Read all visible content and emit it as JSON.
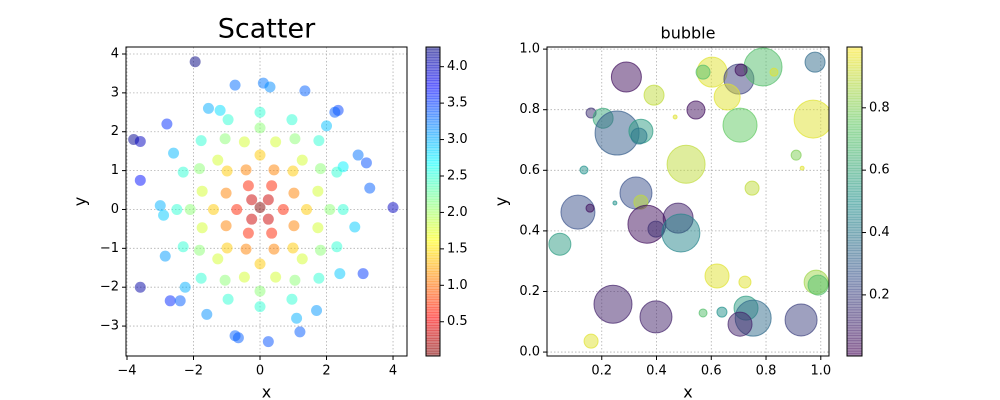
{
  "chart_data": [
    {
      "type": "scatter",
      "title": "Scatter",
      "xlabel": "x",
      "ylabel": "y",
      "colormap": "jet_r",
      "alpha": 0.5,
      "grid": true,
      "xlim": [
        -4.03,
        4.42
      ],
      "ylim": [
        -3.77,
        4.18
      ],
      "xticks": [
        {
          "value": -4,
          "label": "−4"
        },
        {
          "value": -2,
          "label": "−2"
        },
        0,
        2,
        4
      ],
      "yticks": [
        {
          "value": -3,
          "label": "−3"
        },
        {
          "value": -2,
          "label": "−2"
        },
        {
          "value": -1,
          "label": "−1"
        },
        0,
        1,
        2,
        3,
        4
      ],
      "colorbar": {
        "lim": [
          0.03,
          4.27
        ],
        "ticks": [
          0.5,
          {
            "value": 1,
            "label": "1.0"
          },
          1.5,
          {
            "value": 2,
            "label": "2.0"
          },
          2.5,
          {
            "value": 3,
            "label": "3.0"
          },
          3.5,
          {
            "value": 4,
            "label": "4.0"
          }
        ]
      },
      "x": [
        -1.95,
        -3.8,
        -3.6,
        4.0,
        -3.6,
        -3.6,
        3.2,
        3.1,
        -2.8,
        -2.7,
        -0.75,
        -0.65,
        1.2,
        0.1,
        0.3,
        1.35,
        -0.75,
        2.35,
        2.25,
        3.3,
        -3.0,
        -2.9,
        2.4,
        -2.4,
        1.1,
        -1.2,
        -1.55,
        2.0,
        2.95,
        2.85,
        -2.85,
        -2.25,
        0.25,
        1.7,
        -1.6,
        2.5,
        -2.6,
        2.5,
        1.77,
        0,
        -1.77,
        -2.5,
        -1.77,
        0,
        1.77,
        2.31,
        0.96,
        -0.96,
        -2.31,
        -2.31,
        -0.96,
        0.96,
        2.31,
        2.1,
        1.82,
        1.05,
        0,
        -1.05,
        -1.82,
        -2.1,
        -1.82,
        -1.05,
        0,
        1.05,
        1.82,
        1.74,
        1.27,
        0.47,
        -0.47,
        -1.27,
        -1.74,
        -1.74,
        -1.27,
        -0.47,
        0.47,
        1.27,
        1.74,
        1.4,
        0.99,
        0,
        -0.99,
        -1.4,
        -0.99,
        0,
        0.99,
        1.02,
        0.42,
        -0.42,
        -1.02,
        -1.02,
        -0.42,
        0.42,
        1.02,
        0.7,
        0.35,
        -0.35,
        -0.7,
        -0.35,
        0.35,
        0.25,
        -0.25,
        -0.25,
        0.25,
        0
      ],
      "y": [
        3.8,
        1.8,
        1.75,
        0.05,
        -2.0,
        0.75,
        1.2,
        -1.65,
        2.2,
        -2.35,
        -3.25,
        -3.3,
        -3.15,
        3.25,
        3.15,
        3.05,
        3.2,
        2.55,
        2.5,
        0.55,
        0.1,
        -0.15,
        -1.65,
        -2.35,
        -2.8,
        2.55,
        2.6,
        2.15,
        1.4,
        -0.45,
        -1.2,
        -2.0,
        -3.4,
        -2.6,
        -2.7,
        1.1,
        1.45,
        0,
        1.77,
        2.5,
        1.77,
        0,
        -1.77,
        -2.5,
        -1.77,
        0.96,
        2.31,
        2.31,
        0.96,
        -0.96,
        -2.31,
        -2.31,
        -0.96,
        0,
        1.05,
        1.82,
        2.1,
        1.82,
        1.05,
        0,
        -1.05,
        -1.82,
        -2.1,
        -1.82,
        -1.05,
        0.47,
        1.27,
        1.74,
        1.74,
        1.27,
        0.47,
        -0.47,
        -1.27,
        -1.74,
        -1.74,
        -1.27,
        -0.47,
        0,
        0.99,
        1.4,
        0.99,
        0,
        -0.99,
        -1.4,
        -0.99,
        0.42,
        1.02,
        1.02,
        0.42,
        -0.42,
        -1.02,
        -1.02,
        -0.42,
        0,
        0.61,
        0.61,
        0,
        -0.61,
        -0.61,
        0.25,
        0.25,
        -0.25,
        -0.25,
        0.05
      ],
      "c": [
        4.27,
        4.2,
        4.0,
        4.0,
        4.12,
        3.68,
        3.42,
        3.51,
        3.56,
        3.58,
        3.34,
        3.36,
        3.37,
        3.25,
        3.16,
        3.34,
        3.29,
        3.47,
        3.36,
        3.35,
        3.0,
        2.9,
        2.91,
        3.36,
        3.01,
        2.82,
        3.03,
        2.94,
        3.27,
        2.89,
        3.09,
        3.01,
        3.41,
        3.11,
        3.14,
        2.73,
        2.98,
        2.5,
        2.5,
        2.5,
        2.5,
        2.5,
        2.5,
        2.5,
        2.5,
        2.5,
        2.5,
        2.5,
        2.5,
        2.5,
        2.5,
        2.5,
        2.5,
        2.1,
        2.1,
        2.1,
        2.1,
        2.1,
        2.1,
        2.1,
        2.1,
        2.1,
        2.1,
        2.1,
        2.1,
        1.8,
        1.8,
        1.8,
        1.8,
        1.8,
        1.8,
        1.8,
        1.8,
        1.8,
        1.8,
        1.8,
        1.8,
        1.4,
        1.4,
        1.4,
        1.4,
        1.4,
        1.4,
        1.4,
        1.4,
        1.1,
        1.1,
        1.1,
        1.1,
        1.1,
        1.1,
        1.1,
        1.1,
        0.7,
        0.7,
        0.7,
        0.7,
        0.7,
        0.7,
        0.35,
        0.35,
        0.35,
        0.35,
        0.05
      ]
    },
    {
      "type": "bubble",
      "title": "bubble",
      "xlabel": "x",
      "ylabel": "y",
      "colormap": "viridis",
      "alpha": 0.5,
      "grid": true,
      "xlim": [
        0,
        1.03
      ],
      "ylim": [
        -0.013,
        1.007
      ],
      "xticks": [
        0.2,
        0.4,
        0.6,
        0.8,
        {
          "value": 1,
          "label": "1.0"
        }
      ],
      "yticks": [
        {
          "value": 0,
          "label": "0.0"
        },
        0.2,
        0.4,
        0.6,
        0.8,
        {
          "value": 1,
          "label": "1.0"
        }
      ],
      "colorbar": {
        "lim": [
          0.004,
          0.995
        ],
        "ticks": [
          0.2,
          0.4,
          0.6,
          0.8
        ]
      },
      "x": [
        0.29,
        0.603,
        0.701,
        0.789,
        0.709,
        0.979,
        0.57,
        0.829,
        0.391,
        0.658,
        0.544,
        0.468,
        0.161,
        0.205,
        0.256,
        0.343,
        0.336,
        0.705,
        0.972,
        0.91,
        0.932,
        0.508,
        0.135,
        0.749,
        0.325,
        0.343,
        0.248,
        0.113,
        0.157,
        0.479,
        0.365,
        0.398,
        0.489,
        0.047,
        0.621,
        0.723,
        0.983,
        0.99,
        0.241,
        0.398,
        0.727,
        0.753,
        0.639,
        0.57,
        0.705,
        0.928,
        0.161
      ],
      "y": [
        0.908,
        0.924,
        0.901,
        0.941,
        0.931,
        0.957,
        0.924,
        0.924,
        0.848,
        0.842,
        0.799,
        0.776,
        0.789,
        0.772,
        0.723,
        0.729,
        0.713,
        0.749,
        0.769,
        0.65,
        0.607,
        0.62,
        0.601,
        0.541,
        0.525,
        0.495,
        0.492,
        0.462,
        0.475,
        0.442,
        0.422,
        0.406,
        0.393,
        0.356,
        0.251,
        0.231,
        0.231,
        0.221,
        0.158,
        0.116,
        0.145,
        0.112,
        0.132,
        0.129,
        0.092,
        0.106,
        0.036
      ],
      "sizes": [
        468,
        468,
        468,
        751,
        75,
        208,
        102,
        33,
        208,
        352,
        168,
        8,
        52,
        208,
        1007,
        300,
        133,
        601,
        751,
        52,
        8,
        751,
        33,
        102,
        532,
        102,
        8,
        601,
        33,
        468,
        751,
        133,
        751,
        252,
        300,
        75,
        300,
        208,
        751,
        532,
        300,
        674,
        52,
        33,
        300,
        532,
        102
      ],
      "c": [
        0.05,
        0.95,
        0.2,
        0.7,
        0.05,
        0.35,
        0.7,
        0.95,
        0.9,
        0.95,
        0.05,
        0.95,
        0.15,
        0.6,
        0.3,
        0.55,
        0.4,
        0.75,
        0.95,
        0.8,
        0.95,
        0.9,
        0.5,
        0.9,
        0.25,
        0.9,
        0.5,
        0.25,
        0.05,
        0.1,
        0.05,
        0.15,
        0.45,
        0.55,
        0.95,
        0.95,
        0.85,
        0.7,
        0.1,
        0.1,
        0.55,
        0.35,
        0.5,
        0.7,
        0.1,
        0.2,
        0.95
      ]
    }
  ]
}
